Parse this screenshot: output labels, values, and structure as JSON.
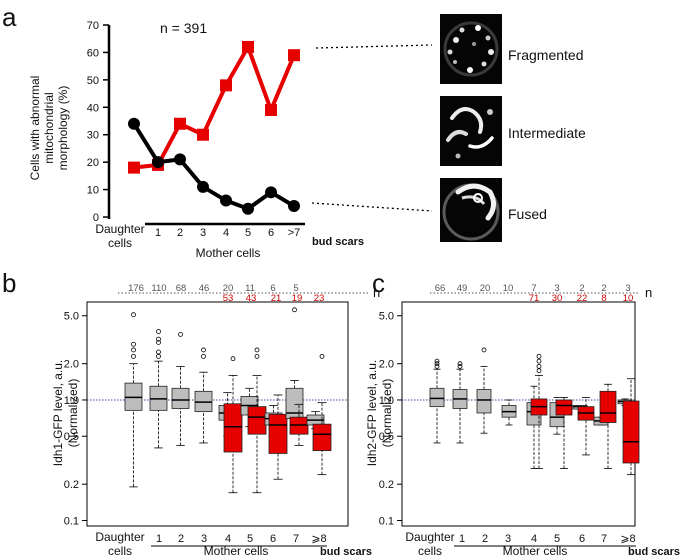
{
  "panels": {
    "a": "a",
    "b": "b",
    "c": "c"
  },
  "panel_a": {
    "n_label": "n = 391",
    "images": [
      {
        "label": "Fragmented"
      },
      {
        "label": "Intermediate"
      },
      {
        "label": "Fused"
      }
    ]
  },
  "axis_text": {
    "daughter_line1": "Daughter",
    "daughter_line2": "cells",
    "mother_cells": "Mother cells",
    "bud_scars": "bud scars",
    "n_letter": "n"
  },
  "colors": {
    "red": "#e60000",
    "black": "#000000",
    "grey": "#bdbdbd"
  },
  "chart_data": [
    {
      "type": "line",
      "ylabel_lines": [
        "Cells with abnormal",
        "mitochondrial",
        "morphology (%)"
      ],
      "ylim": [
        0,
        70
      ],
      "yticks": [
        "0",
        "10",
        "20",
        "30",
        "40",
        "50",
        "60",
        "70"
      ],
      "categories": [
        "Daughter cells",
        "1",
        "2",
        "3",
        "4",
        "5",
        "6",
        ">7"
      ],
      "xticklabels": [
        "1",
        "2",
        "3",
        "4",
        "5",
        "6",
        ">7"
      ],
      "series": [
        {
          "name": "Fragmented",
          "color": "#e60000",
          "marker": "square",
          "values": [
            18,
            19,
            34,
            30,
            48,
            62,
            39,
            59
          ]
        },
        {
          "name": "Fused",
          "color": "#000000",
          "marker": "circle",
          "values": [
            34,
            20,
            21,
            11,
            6,
            3,
            9,
            4
          ]
        }
      ]
    },
    {
      "type": "box",
      "ylabel_lines": [
        "Idh1-GFP  level, a.u.",
        "(Normalized)"
      ],
      "scale": "log",
      "ylim": [
        0.09,
        6.5
      ],
      "yticks": [
        "0.1",
        "0.2",
        "0.5",
        "1.0",
        "2.0",
        "5.0"
      ],
      "xticklabels": [
        "1",
        "2",
        "3",
        "4",
        "5",
        "6",
        "7",
        "⩾8"
      ],
      "n_grey": [
        "176",
        "110",
        "68",
        "46",
        "20",
        "11",
        "6",
        "5"
      ],
      "n_red": [
        "53",
        "43",
        "21",
        "19",
        "23"
      ],
      "boxes": [
        {
          "group": "Daughter",
          "type": "grey",
          "q1": 0.82,
          "med": 1.05,
          "q3": 1.38,
          "wlo": 0.19,
          "whi": 2.0,
          "out": [
            2.3,
            2.6,
            2.9,
            5.1
          ]
        },
        {
          "group": "1",
          "type": "grey",
          "q1": 0.82,
          "med": 1.02,
          "q3": 1.3,
          "wlo": 0.4,
          "whi": 2.1,
          "out": [
            2.3,
            2.5,
            3.0,
            3.2,
            3.7
          ]
        },
        {
          "group": "2",
          "type": "grey",
          "q1": 0.85,
          "med": 1.0,
          "q3": 1.25,
          "wlo": 0.42,
          "whi": 1.9,
          "out": [
            3.5
          ]
        },
        {
          "group": "3",
          "type": "grey",
          "q1": 0.8,
          "med": 0.96,
          "q3": 1.18,
          "wlo": 0.44,
          "whi": 1.7,
          "out": [
            2.3,
            2.6
          ]
        },
        {
          "group": "4",
          "type": "grey",
          "q1": 0.68,
          "med": 0.78,
          "q3": 0.9,
          "wlo": 0.5,
          "whi": 1.15,
          "out": []
        },
        {
          "group": "4",
          "type": "red",
          "q1": 0.37,
          "med": 0.6,
          "q3": 0.93,
          "wlo": 0.17,
          "whi": 1.6,
          "out": [
            2.2
          ]
        },
        {
          "group": "5",
          "type": "grey",
          "q1": 0.75,
          "med": 0.9,
          "q3": 1.07,
          "wlo": 0.6,
          "whi": 1.25,
          "out": []
        },
        {
          "group": "5",
          "type": "red",
          "q1": 0.52,
          "med": 0.72,
          "q3": 0.88,
          "wlo": 0.17,
          "whi": 1.6,
          "out": [
            2.3,
            2.6
          ]
        },
        {
          "group": "6",
          "type": "grey",
          "q1": 0.62,
          "med": 0.7,
          "q3": 0.78,
          "wlo": 0.4,
          "whi": 0.9,
          "out": []
        },
        {
          "group": "6",
          "type": "red",
          "q1": 0.36,
          "med": 0.62,
          "q3": 0.76,
          "wlo": 0.22,
          "whi": 1.1,
          "out": []
        },
        {
          "group": "7",
          "type": "grey",
          "q1": 0.7,
          "med": 0.78,
          "q3": 1.25,
          "wlo": 0.55,
          "whi": 1.45,
          "out": [
            5.6
          ]
        },
        {
          "group": "7",
          "type": "red",
          "q1": 0.52,
          "med": 0.62,
          "q3": 0.72,
          "wlo": 0.42,
          "whi": 0.92,
          "out": []
        },
        {
          "group": "⩾8",
          "type": "grey",
          "q1": 0.62,
          "med": 0.68,
          "q3": 0.75,
          "wlo": 0.58,
          "whi": 0.8,
          "out": []
        },
        {
          "group": "⩾8",
          "type": "red",
          "q1": 0.38,
          "med": 0.52,
          "q3": 0.63,
          "wlo": 0.24,
          "whi": 0.95,
          "out": [
            2.3
          ]
        }
      ]
    },
    {
      "type": "box",
      "ylabel_lines": [
        "Idh2-GFP  level, a.u.",
        "(Normalized)"
      ],
      "scale": "log",
      "ylim": [
        0.09,
        6.5
      ],
      "yticks": [
        "0.1",
        "0.2",
        "0.5",
        "1.0",
        "2.0",
        "5.0"
      ],
      "xticklabels": [
        "1",
        "2",
        "3",
        "4",
        "5",
        "6",
        "7",
        "⩾8"
      ],
      "n_grey": [
        "66",
        "49",
        "20",
        "10",
        "7",
        "3",
        "2",
        "2",
        "3"
      ],
      "n_red": [
        "71",
        "30",
        "22",
        "8",
        "10"
      ],
      "boxes": [
        {
          "group": "Daughter",
          "type": "grey",
          "q1": 0.88,
          "med": 1.03,
          "q3": 1.25,
          "wlo": 0.44,
          "whi": 1.8,
          "out": [
            1.9,
            2.0,
            2.1
          ]
        },
        {
          "group": "1",
          "type": "grey",
          "q1": 0.85,
          "med": 1.02,
          "q3": 1.22,
          "wlo": 0.44,
          "whi": 1.8,
          "out": [
            1.9,
            2.0
          ]
        },
        {
          "group": "2",
          "type": "grey",
          "q1": 0.78,
          "med": 1.0,
          "q3": 1.22,
          "wlo": 0.53,
          "whi": 1.9,
          "out": [
            2.6
          ]
        },
        {
          "group": "3",
          "type": "grey",
          "q1": 0.72,
          "med": 0.8,
          "q3": 0.9,
          "wlo": 0.62,
          "whi": 1.0,
          "out": []
        },
        {
          "group": "4",
          "type": "grey",
          "q1": 0.62,
          "med": 0.8,
          "q3": 0.95,
          "wlo": 0.27,
          "whi": 1.3,
          "out": []
        },
        {
          "group": "4",
          "type": "red",
          "q1": 0.75,
          "med": 0.88,
          "q3": 1.02,
          "wlo": 0.27,
          "whi": 1.6,
          "out": [
            1.75,
            1.9,
            2.1,
            2.3
          ]
        },
        {
          "group": "5",
          "type": "grey",
          "q1": 0.6,
          "med": 0.72,
          "q3": 0.95,
          "wlo": 0.52,
          "whi": 1.05,
          "out": []
        },
        {
          "group": "5",
          "type": "red",
          "q1": 0.75,
          "med": 0.9,
          "q3": 1.0,
          "wlo": 0.27,
          "whi": 1.05,
          "out": []
        },
        {
          "group": "6",
          "type": "grey",
          "q1": 0.84,
          "med": 0.88,
          "q3": 0.9,
          "wlo": 0.84,
          "whi": 0.9,
          "out": []
        },
        {
          "group": "6",
          "type": "red",
          "q1": 0.68,
          "med": 0.78,
          "q3": 0.88,
          "wlo": 0.35,
          "whi": 1.05,
          "out": []
        },
        {
          "group": "7",
          "type": "grey",
          "q1": 0.62,
          "med": 0.67,
          "q3": 0.72,
          "wlo": 0.62,
          "whi": 0.72,
          "out": []
        },
        {
          "group": "7",
          "type": "red",
          "q1": 0.65,
          "med": 0.78,
          "q3": 1.18,
          "wlo": 0.27,
          "whi": 1.35,
          "out": []
        },
        {
          "group": "⩾8",
          "type": "grey",
          "q1": 0.93,
          "med": 0.97,
          "q3": 1.0,
          "wlo": 0.9,
          "whi": 1.02,
          "out": []
        },
        {
          "group": "⩾8",
          "type": "red",
          "q1": 0.3,
          "med": 0.45,
          "q3": 0.98,
          "wlo": 0.24,
          "whi": 1.5,
          "out": []
        }
      ]
    }
  ]
}
